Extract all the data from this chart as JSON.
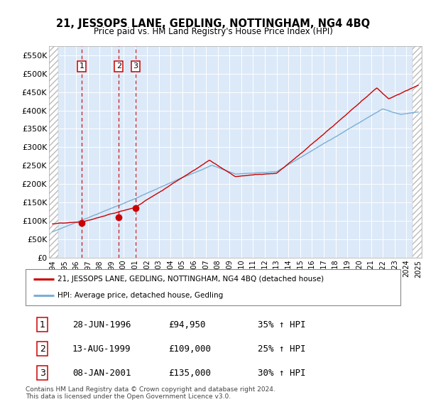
{
  "title": "21, JESSOPS LANE, GEDLING, NOTTINGHAM, NG4 4BQ",
  "subtitle": "Price paid vs. HM Land Registry's House Price Index (HPI)",
  "ylim": [
    0,
    575000
  ],
  "yticks": [
    0,
    50000,
    100000,
    150000,
    200000,
    250000,
    300000,
    350000,
    400000,
    450000,
    500000,
    550000
  ],
  "ytick_labels": [
    "£0",
    "£50K",
    "£100K",
    "£150K",
    "£200K",
    "£250K",
    "£300K",
    "£350K",
    "£400K",
    "£450K",
    "£500K",
    "£550K"
  ],
  "background_color": "#dce9f8",
  "grid_color": "#ffffff",
  "sale_dates": [
    1996.49,
    1999.62,
    2001.02
  ],
  "sale_prices": [
    94950,
    109000,
    135000
  ],
  "sale_labels": [
    "1",
    "2",
    "3"
  ],
  "legend_line1": "21, JESSOPS LANE, GEDLING, NOTTINGHAM, NG4 4BQ (detached house)",
  "legend_line2": "HPI: Average price, detached house, Gedling",
  "table_data": [
    [
      "1",
      "28-JUN-1996",
      "£94,950",
      "35% ↑ HPI"
    ],
    [
      "2",
      "13-AUG-1999",
      "£109,000",
      "25% ↑ HPI"
    ],
    [
      "3",
      "08-JAN-2001",
      "£135,000",
      "30% ↑ HPI"
    ]
  ],
  "footer": "Contains HM Land Registry data © Crown copyright and database right 2024.\nThis data is licensed under the Open Government Licence v3.0.",
  "hpi_line_color": "#7bafd4",
  "price_line_color": "#cc0000",
  "sale_marker_color": "#cc0000",
  "sale_vline_color": "#cc0000",
  "xlim_left": 1993.7,
  "xlim_right": 2025.3,
  "hatch_left_end": 1994.5,
  "hatch_right_start": 2024.5
}
